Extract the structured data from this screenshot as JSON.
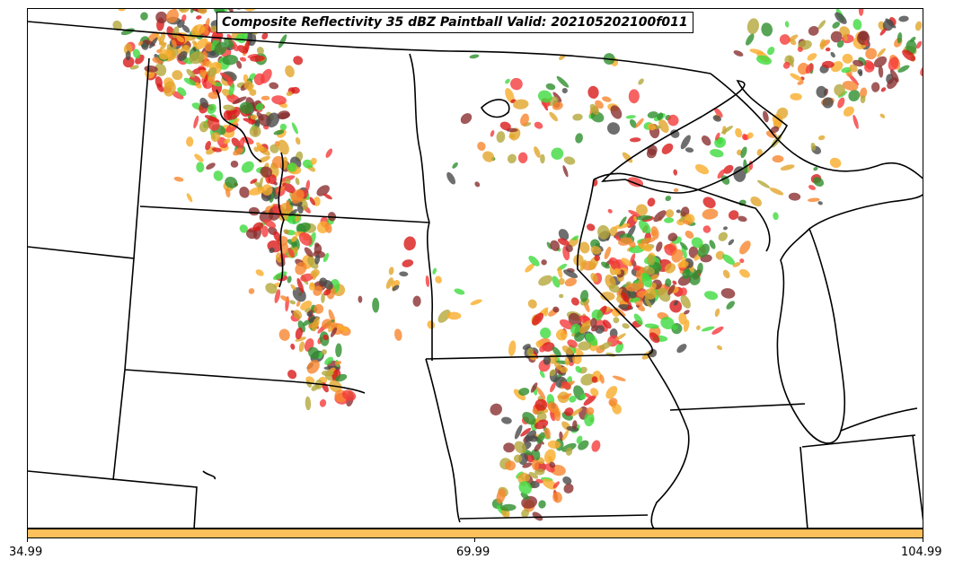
{
  "title": "Composite Reflectivity 35 dBZ Paintball Valid: 202105202100f011",
  "colorbar": {
    "color": "#fdc15c",
    "ticks": [
      "34.99",
      "69.99",
      "104.99"
    ]
  },
  "member_colors": [
    "#3fdb3f",
    "#f53b3b",
    "#f7862e",
    "#f9ad2a",
    "#b3a83b",
    "#8a2f2f",
    "#4a4a4a",
    "#2e8f2e",
    "#d91a1a",
    "#e2a52b"
  ],
  "icons": [
    "map-outline",
    "reflectivity-blob"
  ]
}
